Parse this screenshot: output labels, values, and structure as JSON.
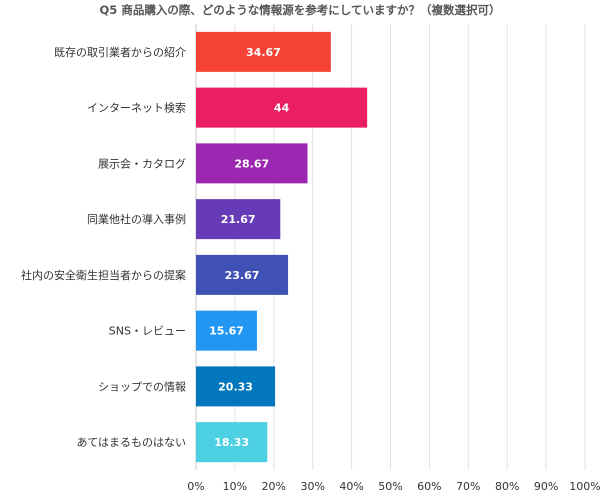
{
  "chart_data": {
    "type": "bar",
    "orientation": "horizontal",
    "title": "Q5 商品購入の際、どのような情報源を参考にしていますか？（複数選択可）",
    "categories": [
      "既存の取引業者からの紹介",
      "インターネット検索",
      "展示会・カタログ",
      "同業他社の導入事例",
      "社内の安全衛生担当者からの提案",
      "SNS・レビュー",
      "ショップでの情報",
      "あてはまるものはない"
    ],
    "values": [
      34.67,
      44,
      28.67,
      21.67,
      23.67,
      15.67,
      20.33,
      18.33
    ],
    "value_labels": [
      "34.67",
      "44",
      "28.67",
      "21.67",
      "23.67",
      "15.67",
      "20.33",
      "18.33"
    ],
    "colors": [
      "#f44336",
      "#e91e63",
      "#9c27b0",
      "#673ab7",
      "#3f51b5",
      "#2196f3",
      "#0277bd",
      "#4dd0e1"
    ],
    "xlim": [
      0,
      100
    ],
    "x_ticks": [
      "0%",
      "10%",
      "20%",
      "30%",
      "40%",
      "50%",
      "60%",
      "70%",
      "80%",
      "90%",
      "100%"
    ],
    "grid": true,
    "legend": "none"
  }
}
